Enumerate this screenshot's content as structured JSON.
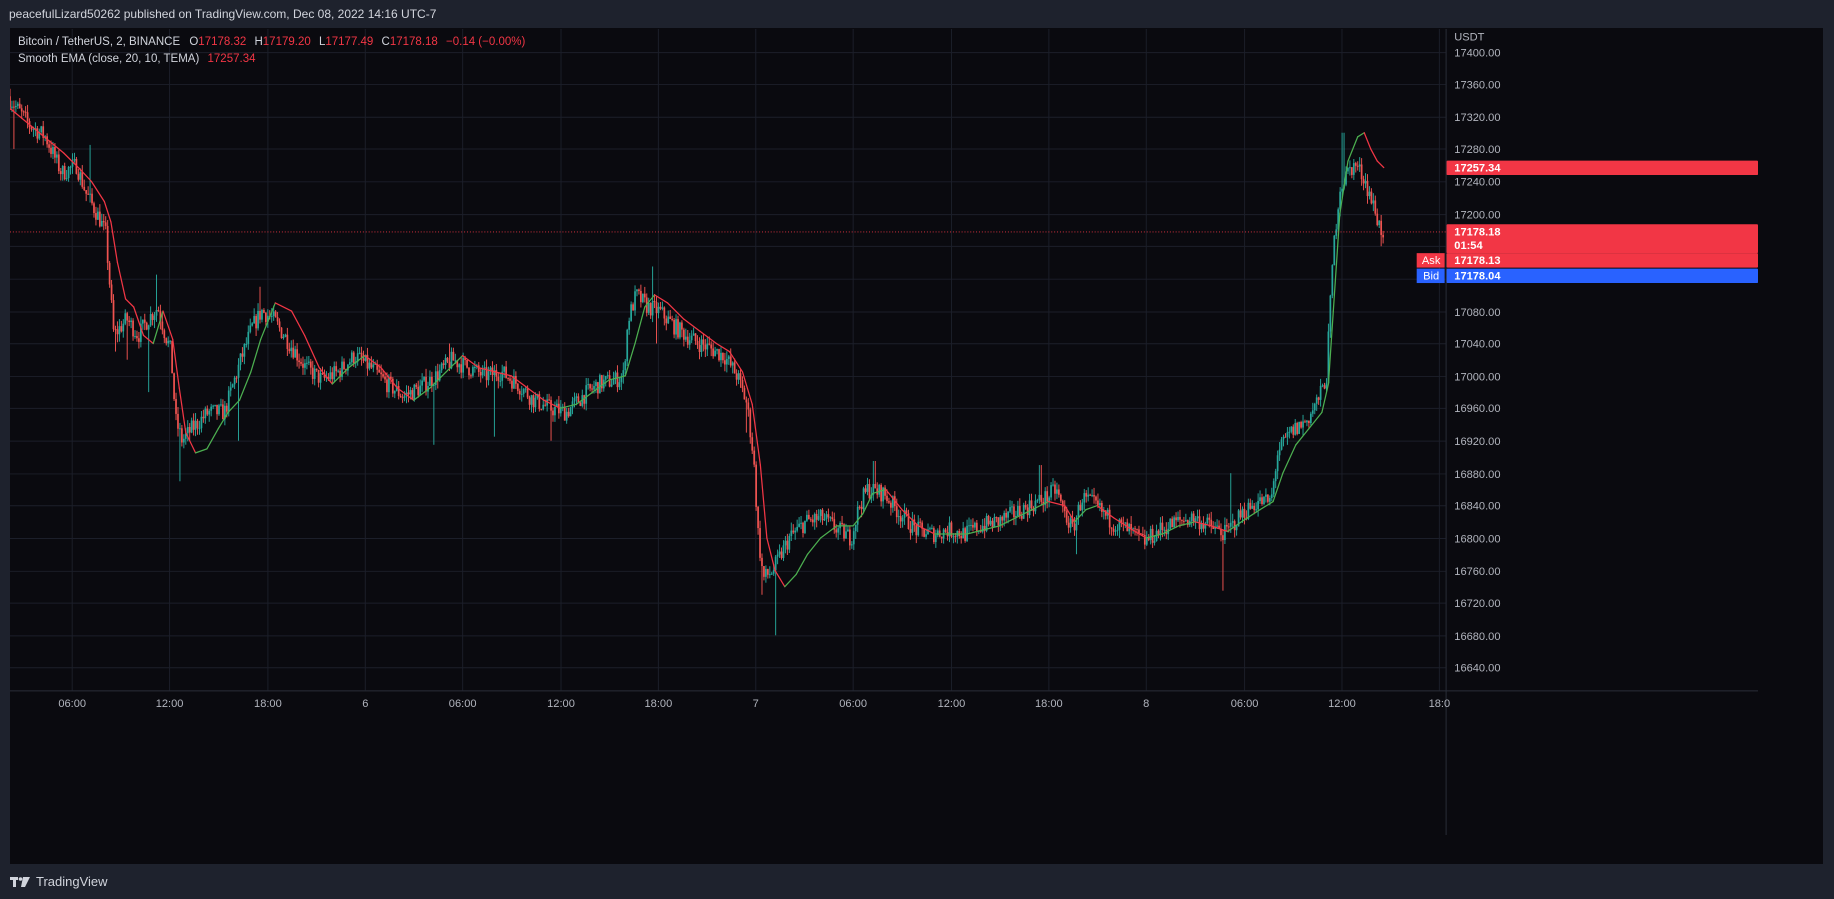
{
  "header": {
    "published_text": "peacefulLizard50262 published on TradingView.com, Dec 08, 2022 14:16 UTC-7"
  },
  "legend": {
    "symbol": "Bitcoin / TetherUS, 2, BINANCE",
    "o_label": "O",
    "o_value": "17178.32",
    "h_label": "H",
    "h_value": "17179.20",
    "l_label": "L",
    "l_value": "17177.49",
    "c_label": "C",
    "c_value": "17178.18",
    "change": "−0.14 (−0.00%)",
    "indicator": "Smooth EMA (close, 20, 10, TEMA)",
    "indicator_value": "17257.34"
  },
  "price_axis": {
    "currency": "USDT",
    "tags": {
      "indicator": "17257.34",
      "last_price": "17178.18",
      "countdown": "01:54",
      "ask_label": "Ask",
      "ask_value": "17178.13",
      "bid_label": "Bid",
      "bid_value": "17178.04"
    }
  },
  "footer": {
    "brand": "TradingView"
  },
  "colors": {
    "up": "#26a69a",
    "down": "#ef5350",
    "ema_up": "#4caf50",
    "ema_down": "#f23645",
    "last_price": "#f23645",
    "ask": "#f23645",
    "bid": "#2962ff",
    "background": "#0a0a0f",
    "grid": "#1c1f2a",
    "axis_text": "#b2b5be"
  },
  "chart_data": {
    "type": "candlestick",
    "y_ticks": [
      17400,
      17360,
      17320,
      17280,
      17240,
      17200,
      17160,
      17120,
      17080,
      17040,
      17000,
      16960,
      16920,
      16880,
      16840,
      16800,
      16760,
      16720,
      16680,
      16640
    ],
    "y_tick_labels": [
      "17400.00",
      "17360.00",
      "17320.00",
      "17280.00",
      "17240.00",
      "17200.00",
      "17160.00",
      "17120.00",
      "17080.00",
      "17040.00",
      "17000.00",
      "16960.00",
      "16920.00",
      "16880.00",
      "16840.00",
      "16800.00",
      "16760.00",
      "16720.00",
      "16680.00",
      "16640.00"
    ],
    "ylim": [
      16612,
      17428
    ],
    "x_ticks": [
      {
        "label": "06:00",
        "t": -6
      },
      {
        "label": "12:00",
        "t": 0
      },
      {
        "label": "18:00",
        "t": 6
      },
      {
        "label": "6",
        "t": 12
      },
      {
        "label": "06:00",
        "t": 18
      },
      {
        "label": "12:00",
        "t": 24
      },
      {
        "label": "18:00",
        "t": 30
      },
      {
        "label": "7",
        "t": 36
      },
      {
        "label": "06:00",
        "t": 42
      },
      {
        "label": "12:00",
        "t": 48
      },
      {
        "label": "18:00",
        "t": 54
      },
      {
        "label": "8",
        "t": 60
      },
      {
        "label": "06:00",
        "t": 66
      },
      {
        "label": "12:00",
        "t": 72
      },
      {
        "label": "18:0",
        "t": 78
      }
    ],
    "x_unit": "hours from Dec 5 12:00",
    "xlim": [
      -9.8,
      78.4
    ],
    "last_price": 17178.18,
    "path_keypoints": [
      [
        -9.8,
        17345
      ],
      [
        -8.5,
        17310
      ],
      [
        -7.5,
        17295
      ],
      [
        -6.5,
        17250
      ],
      [
        -5.6,
        17260
      ],
      [
        -5.0,
        17225
      ],
      [
        -4.2,
        17195
      ],
      [
        -3.8,
        17175
      ],
      [
        -3.5,
        17100
      ],
      [
        -3.3,
        17050
      ],
      [
        -2.5,
        17070
      ],
      [
        -1.8,
        17050
      ],
      [
        -1.2,
        17070
      ],
      [
        -0.6,
        17085
      ],
      [
        -0.2,
        17055
      ],
      [
        0.2,
        17030
      ],
      [
        0.5,
        16945
      ],
      [
        0.9,
        16920
      ],
      [
        1.5,
        16935
      ],
      [
        2.5,
        16955
      ],
      [
        3.5,
        16955
      ],
      [
        4.5,
        17020
      ],
      [
        5.2,
        17060
      ],
      [
        5.8,
        17080
      ],
      [
        6.5,
        17070
      ],
      [
        7.5,
        17040
      ],
      [
        8.5,
        17010
      ],
      [
        9.5,
        16995
      ],
      [
        10.5,
        17005
      ],
      [
        11.5,
        17025
      ],
      [
        12.5,
        17010
      ],
      [
        13.5,
        16990
      ],
      [
        14.5,
        16975
      ],
      [
        15.5,
        16985
      ],
      [
        16.5,
        17000
      ],
      [
        17.5,
        17020
      ],
      [
        18.5,
        17010
      ],
      [
        19.5,
        17000
      ],
      [
        20.5,
        17005
      ],
      [
        21.5,
        16990
      ],
      [
        22.5,
        16970
      ],
      [
        23.5,
        16960
      ],
      [
        24.5,
        16955
      ],
      [
        25.5,
        16975
      ],
      [
        26.5,
        16990
      ],
      [
        27.5,
        16995
      ],
      [
        28.0,
        17000
      ],
      [
        28.3,
        17070
      ],
      [
        28.8,
        17100
      ],
      [
        29.5,
        17085
      ],
      [
        30.2,
        17080
      ],
      [
        31.2,
        17060
      ],
      [
        32.2,
        17045
      ],
      [
        33.2,
        17035
      ],
      [
        34.2,
        17025
      ],
      [
        35.0,
        17000
      ],
      [
        35.6,
        16965
      ],
      [
        36.0,
        16900
      ],
      [
        36.3,
        16800
      ],
      [
        36.6,
        16750
      ],
      [
        37.2,
        16760
      ],
      [
        38.2,
        16800
      ],
      [
        39.2,
        16820
      ],
      [
        40.2,
        16825
      ],
      [
        41.2,
        16810
      ],
      [
        42.0,
        16800
      ],
      [
        42.5,
        16840
      ],
      [
        43.0,
        16860
      ],
      [
        44.0,
        16855
      ],
      [
        45.0,
        16830
      ],
      [
        46.0,
        16810
      ],
      [
        47.0,
        16805
      ],
      [
        48.0,
        16810
      ],
      [
        49.0,
        16805
      ],
      [
        50.0,
        16815
      ],
      [
        51.0,
        16820
      ],
      [
        52.0,
        16830
      ],
      [
        53.0,
        16840
      ],
      [
        54.0,
        16850
      ],
      [
        54.6,
        16860
      ],
      [
        55.0,
        16835
      ],
      [
        55.6,
        16810
      ],
      [
        56.2,
        16850
      ],
      [
        57.0,
        16840
      ],
      [
        58.0,
        16820
      ],
      [
        59.0,
        16810
      ],
      [
        60.0,
        16795
      ],
      [
        61.0,
        16810
      ],
      [
        62.0,
        16820
      ],
      [
        63.0,
        16825
      ],
      [
        64.0,
        16815
      ],
      [
        65.0,
        16805
      ],
      [
        66.0,
        16830
      ],
      [
        67.0,
        16845
      ],
      [
        67.8,
        16845
      ],
      [
        68.2,
        16905
      ],
      [
        69.0,
        16930
      ],
      [
        70.0,
        16945
      ],
      [
        70.8,
        16975
      ],
      [
        71.2,
        17000
      ],
      [
        71.6,
        17150
      ],
      [
        72.0,
        17230
      ],
      [
        72.6,
        17255
      ],
      [
        73.0,
        17260
      ],
      [
        73.5,
        17245
      ],
      [
        74.0,
        17215
      ],
      [
        74.3,
        17195
      ],
      [
        74.6,
        17178
      ]
    ],
    "spikes": [
      {
        "t": -9.6,
        "low": 17280
      },
      {
        "t": -4.9,
        "high": 17285
      },
      {
        "t": -3.3,
        "low": 17030
      },
      {
        "t": -2.6,
        "low": 17020
      },
      {
        "t": -1.3,
        "low": 16980
      },
      {
        "t": -0.8,
        "high": 17125
      },
      {
        "t": 0.6,
        "low": 16870
      },
      {
        "t": 4.2,
        "low": 16920
      },
      {
        "t": 5.6,
        "high": 17110
      },
      {
        "t": 17.2,
        "high": 17040
      },
      {
        "t": 16.2,
        "low": 16915
      },
      {
        "t": 20.0,
        "low": 16925
      },
      {
        "t": 23.4,
        "low": 16920
      },
      {
        "t": 29.7,
        "high": 17135
      },
      {
        "t": 29.9,
        "low": 17040
      },
      {
        "t": 35.4,
        "low": 16930
      },
      {
        "t": 37.2,
        "low": 16680
      },
      {
        "t": 36.4,
        "low": 16730
      },
      {
        "t": 43.3,
        "high": 16895
      },
      {
        "t": 53.5,
        "high": 16890
      },
      {
        "t": 55.7,
        "low": 16780
      },
      {
        "t": 64.7,
        "low": 16735
      },
      {
        "t": 65.2,
        "high": 16880
      },
      {
        "t": 72.1,
        "high": 17300
      },
      {
        "t": 74.4,
        "low": 17160
      }
    ],
    "ema_keypoints": [
      [
        -9.8,
        17330
      ],
      [
        -8.0,
        17300
      ],
      [
        -6.5,
        17275
      ],
      [
        -5.5,
        17255
      ],
      [
        -4.8,
        17240
      ],
      [
        -4.0,
        17215
      ],
      [
        -3.6,
        17190
      ],
      [
        -3.2,
        17140
      ],
      [
        -2.7,
        17095
      ],
      [
        -2.2,
        17085
      ],
      [
        -1.6,
        17050
      ],
      [
        -1.0,
        17040
      ],
      [
        -0.4,
        17080
      ],
      [
        0.2,
        17045
      ],
      [
        0.6,
        16985
      ],
      [
        1.0,
        16930
      ],
      [
        1.6,
        16905
      ],
      [
        2.3,
        16910
      ],
      [
        3.0,
        16935
      ],
      [
        3.6,
        16955
      ],
      [
        4.3,
        16970
      ],
      [
        5.0,
        17005
      ],
      [
        5.6,
        17045
      ],
      [
        6.5,
        17090
      ],
      [
        7.5,
        17080
      ],
      [
        8.3,
        17050
      ],
      [
        9.2,
        17010
      ],
      [
        10.0,
        16990
      ],
      [
        11.0,
        17010
      ],
      [
        12.0,
        17025
      ],
      [
        13.0,
        17010
      ],
      [
        14.0,
        16985
      ],
      [
        15.0,
        16970
      ],
      [
        16.0,
        16985
      ],
      [
        17.0,
        17005
      ],
      [
        18.0,
        17025
      ],
      [
        19.0,
        17010
      ],
      [
        20.0,
        17005
      ],
      [
        21.0,
        17000
      ],
      [
        22.0,
        16985
      ],
      [
        23.0,
        16970
      ],
      [
        24.0,
        16960
      ],
      [
        25.0,
        16965
      ],
      [
        26.0,
        16980
      ],
      [
        27.0,
        16995
      ],
      [
        28.0,
        17000
      ],
      [
        28.6,
        17040
      ],
      [
        29.2,
        17085
      ],
      [
        29.8,
        17100
      ],
      [
        30.6,
        17090
      ],
      [
        31.6,
        17070
      ],
      [
        32.6,
        17055
      ],
      [
        33.6,
        17040
      ],
      [
        34.4,
        17030
      ],
      [
        35.2,
        17005
      ],
      [
        35.8,
        16965
      ],
      [
        36.3,
        16890
      ],
      [
        36.7,
        16800
      ],
      [
        37.2,
        16760
      ],
      [
        37.8,
        16740
      ],
      [
        38.5,
        16755
      ],
      [
        39.2,
        16780
      ],
      [
        40.0,
        16800
      ],
      [
        41.0,
        16815
      ],
      [
        42.0,
        16815
      ],
      [
        42.6,
        16830
      ],
      [
        43.2,
        16855
      ],
      [
        44.0,
        16860
      ],
      [
        45.0,
        16835
      ],
      [
        46.0,
        16815
      ],
      [
        47.0,
        16805
      ],
      [
        48.0,
        16805
      ],
      [
        49.0,
        16805
      ],
      [
        50.0,
        16810
      ],
      [
        51.0,
        16815
      ],
      [
        52.0,
        16825
      ],
      [
        53.0,
        16835
      ],
      [
        54.0,
        16845
      ],
      [
        55.0,
        16840
      ],
      [
        55.6,
        16820
      ],
      [
        56.3,
        16835
      ],
      [
        57.0,
        16840
      ],
      [
        58.0,
        16825
      ],
      [
        59.0,
        16812
      ],
      [
        60.0,
        16800
      ],
      [
        61.0,
        16805
      ],
      [
        62.0,
        16815
      ],
      [
        63.0,
        16820
      ],
      [
        64.0,
        16815
      ],
      [
        65.0,
        16808
      ],
      [
        66.0,
        16822
      ],
      [
        67.0,
        16835
      ],
      [
        67.8,
        16845
      ],
      [
        68.4,
        16880
      ],
      [
        69.2,
        16915
      ],
      [
        70.0,
        16935
      ],
      [
        70.8,
        16955
      ],
      [
        71.2,
        16990
      ],
      [
        71.5,
        17080
      ],
      [
        71.9,
        17200
      ],
      [
        72.4,
        17265
      ],
      [
        73.0,
        17295
      ],
      [
        73.4,
        17300
      ],
      [
        73.8,
        17280
      ],
      [
        74.2,
        17265
      ],
      [
        74.6,
        17257
      ]
    ]
  }
}
